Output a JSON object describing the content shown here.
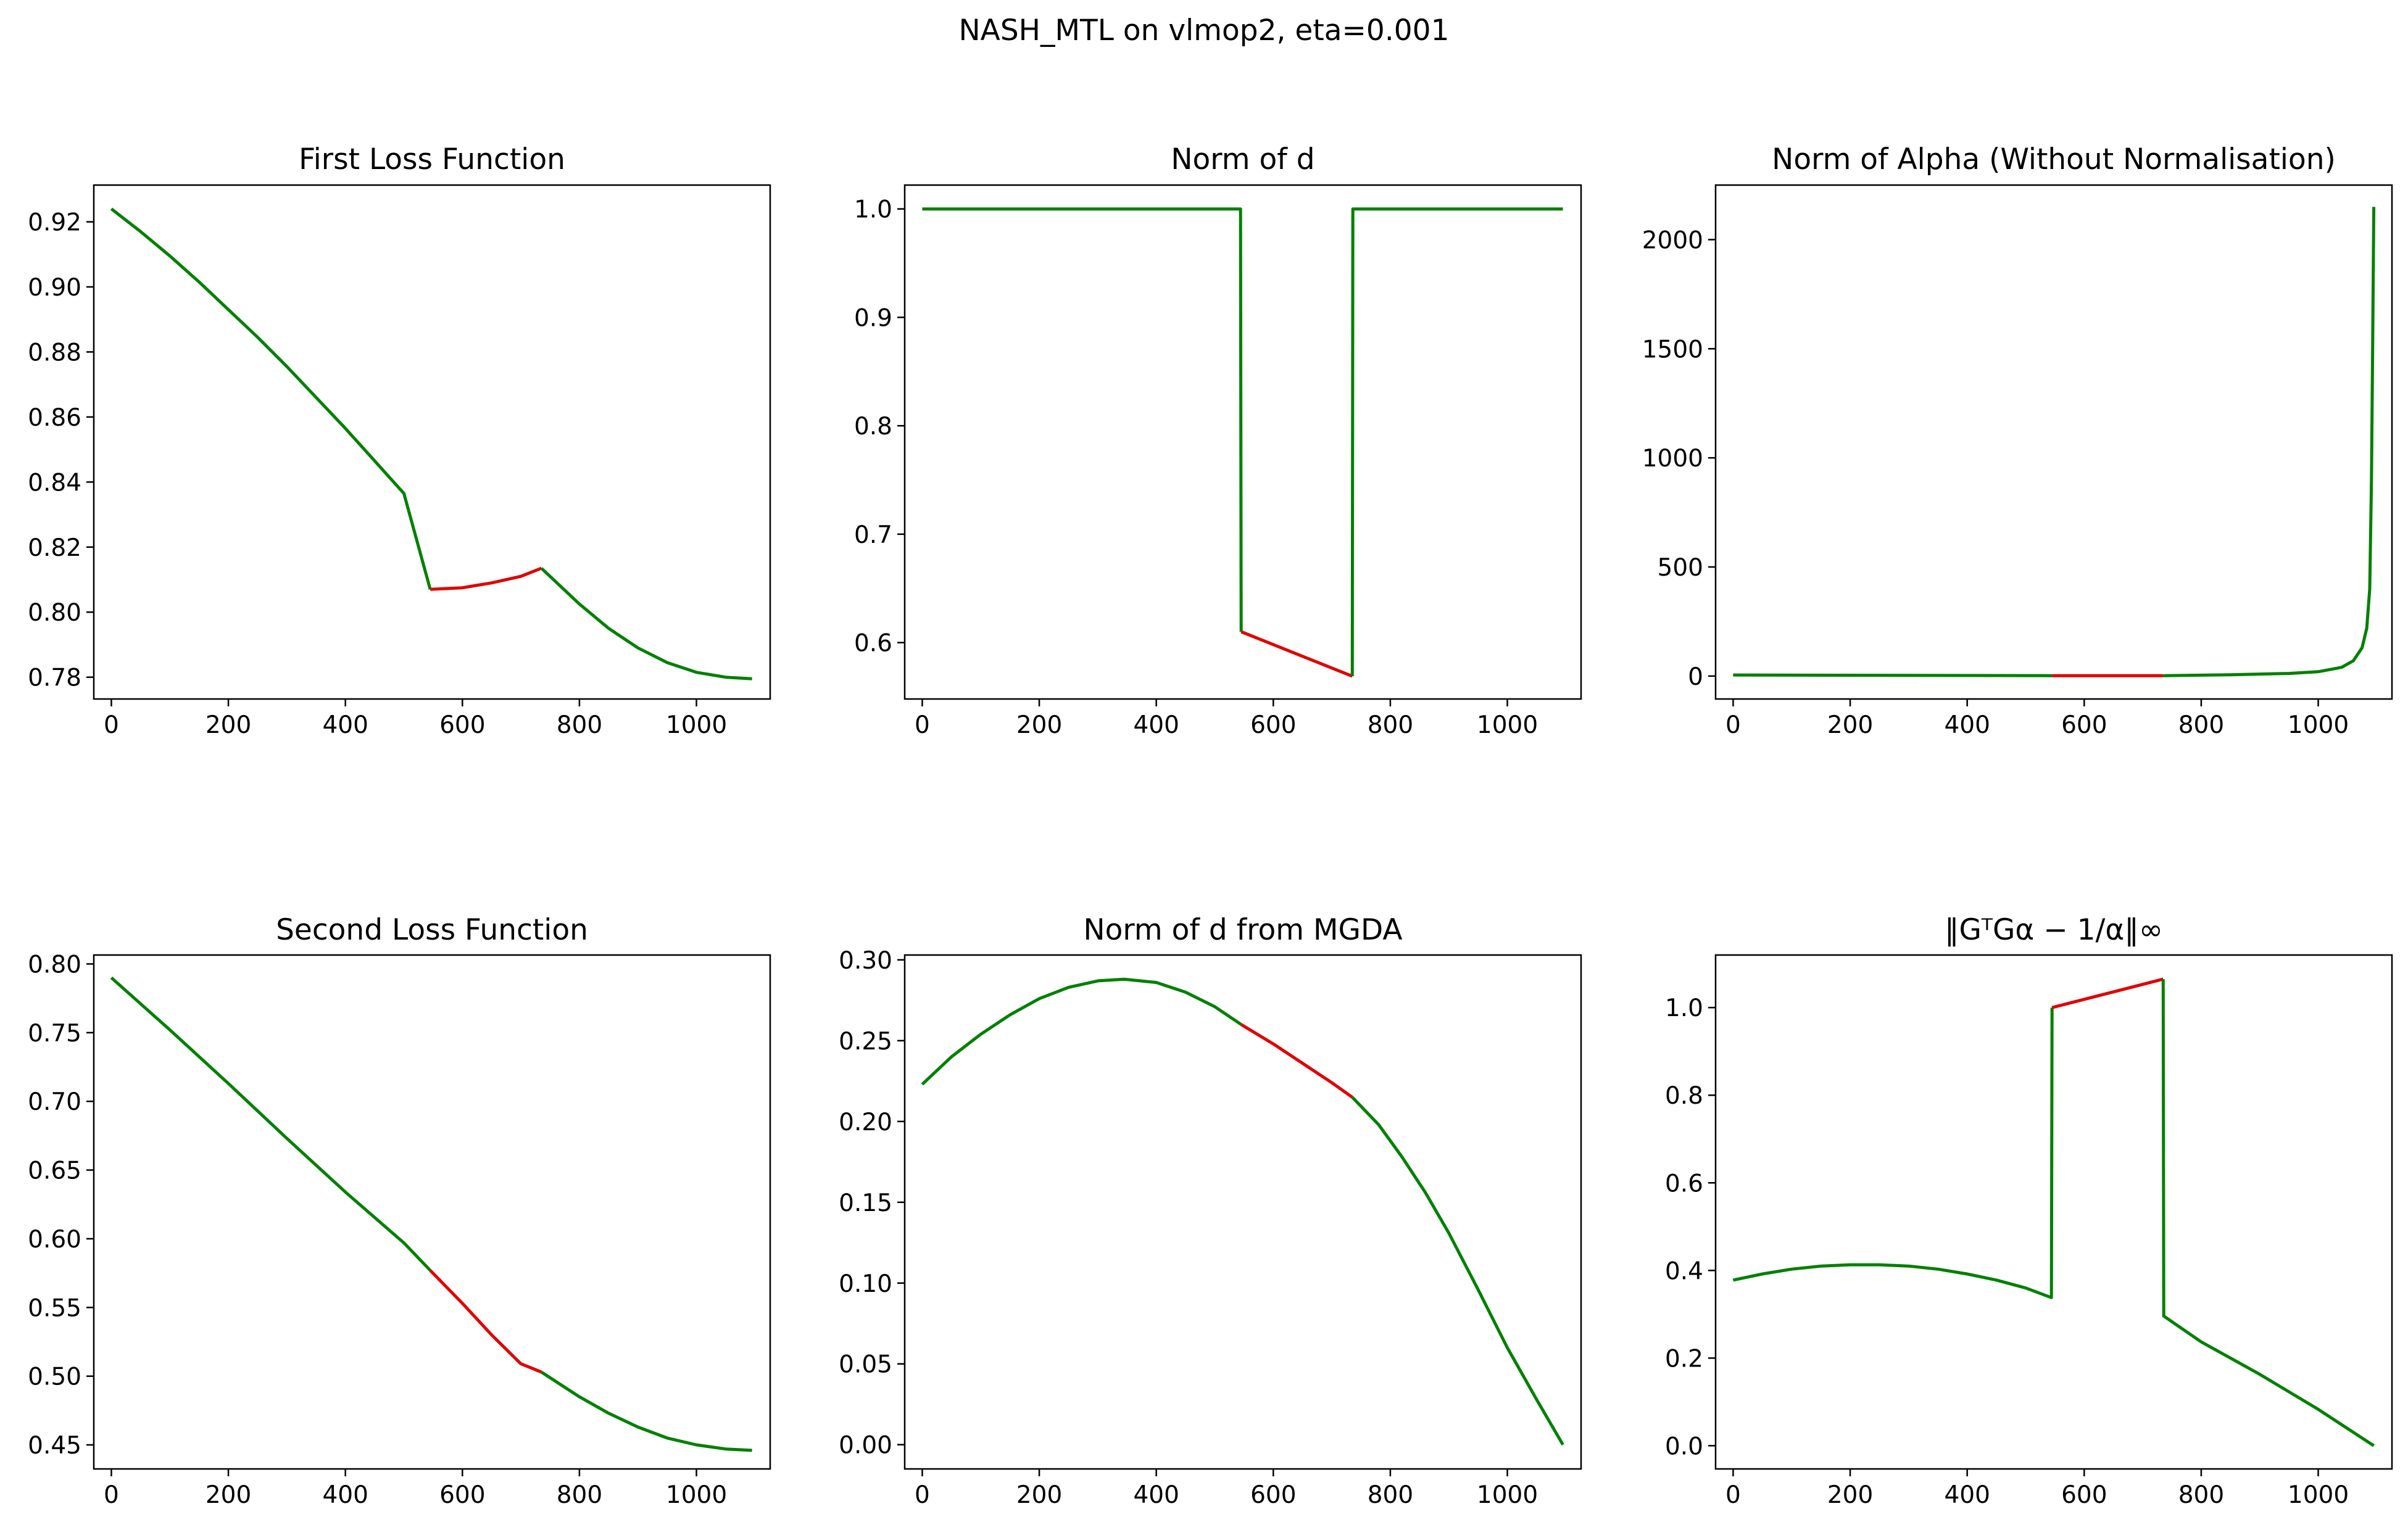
{
  "figure_title": "NASH_MTL on vlmop2, eta=0.001",
  "colors": {
    "normal": "#008000",
    "highlight": "#e00000"
  },
  "chart_data": [
    {
      "type": "line",
      "title": "First Loss Function",
      "xlim": [
        -30,
        1126
      ],
      "ylim": [
        0.7733,
        0.9313
      ],
      "xticks": [
        0,
        200,
        400,
        600,
        800,
        1000
      ],
      "yticks": [
        0.78,
        0.8,
        0.82,
        0.84,
        0.86,
        0.88,
        0.9,
        0.92
      ],
      "ytick_decimals": 2,
      "series": [
        {
          "color": "normal",
          "x": [
            0,
            50,
            100,
            150,
            200,
            250,
            300,
            350,
            400,
            450,
            500,
            545
          ],
          "y": [
            0.924,
            0.917,
            0.9095,
            0.9015,
            0.893,
            0.8845,
            0.8755,
            0.866,
            0.8565,
            0.8465,
            0.8365,
            0.807
          ]
        },
        {
          "color": "highlight",
          "x": [
            545,
            600,
            650,
            700,
            735
          ],
          "y": [
            0.807,
            0.8075,
            0.809,
            0.811,
            0.8135
          ]
        },
        {
          "color": "normal",
          "x": [
            735,
            800,
            850,
            900,
            950,
            1000,
            1050,
            1095
          ],
          "y": [
            0.8135,
            0.8025,
            0.795,
            0.789,
            0.7845,
            0.7815,
            0.78,
            0.7795
          ]
        }
      ]
    },
    {
      "type": "line",
      "title": "Norm of d",
      "xlim": [
        -30,
        1126
      ],
      "ylim": [
        0.548,
        1.022
      ],
      "xticks": [
        0,
        200,
        400,
        600,
        800,
        1000
      ],
      "yticks": [
        0.6,
        0.7,
        0.8,
        0.9,
        1.0
      ],
      "ytick_decimals": 1,
      "series": [
        {
          "color": "normal",
          "x": [
            0,
            544,
            545
          ],
          "y": [
            1.0,
            1.0,
            0.61
          ]
        },
        {
          "color": "highlight",
          "x": [
            545,
            735
          ],
          "y": [
            0.61,
            0.569
          ]
        },
        {
          "color": "normal",
          "x": [
            735,
            736,
            1095
          ],
          "y": [
            0.569,
            1.0,
            1.0
          ]
        }
      ]
    },
    {
      "type": "line",
      "title": "Norm of Alpha (Without Normalisation)",
      "xlim": [
        -30,
        1126
      ],
      "ylim": [
        -105,
        2250
      ],
      "xticks": [
        0,
        200,
        400,
        600,
        800,
        1000
      ],
      "yticks": [
        0,
        500,
        1000,
        1500,
        2000
      ],
      "ytick_decimals": 0,
      "series": [
        {
          "color": "normal",
          "x": [
            0,
            545
          ],
          "y": [
            5,
            2
          ]
        },
        {
          "color": "highlight",
          "x": [
            545,
            735
          ],
          "y": [
            2,
            2
          ]
        },
        {
          "color": "normal",
          "x": [
            735,
            850,
            950,
            1000,
            1040,
            1060,
            1075,
            1083,
            1088,
            1091,
            1093,
            1095
          ],
          "y": [
            2,
            6,
            12,
            20,
            40,
            70,
            130,
            220,
            400,
            900,
            1500,
            2150
          ]
        }
      ]
    },
    {
      "type": "line",
      "title": "Second Loss Function",
      "xlim": [
        -30,
        1126
      ],
      "ylim": [
        0.4325,
        0.8065
      ],
      "xticks": [
        0,
        200,
        400,
        600,
        800,
        1000
      ],
      "yticks": [
        0.45,
        0.5,
        0.55,
        0.6,
        0.65,
        0.7,
        0.75,
        0.8
      ],
      "ytick_decimals": 2,
      "series": [
        {
          "color": "normal",
          "x": [
            0,
            100,
            200,
            300,
            400,
            500,
            545
          ],
          "y": [
            0.79,
            0.752,
            0.713,
            0.673,
            0.634,
            0.597,
            0.577
          ]
        },
        {
          "color": "highlight",
          "x": [
            545,
            600,
            650,
            700,
            735
          ],
          "y": [
            0.577,
            0.553,
            0.53,
            0.509,
            0.503
          ]
        },
        {
          "color": "normal",
          "x": [
            735,
            800,
            850,
            900,
            950,
            1000,
            1050,
            1095
          ],
          "y": [
            0.503,
            0.485,
            0.473,
            0.463,
            0.455,
            0.45,
            0.447,
            0.446
          ]
        }
      ]
    },
    {
      "type": "line",
      "title": "Norm of d from MGDA",
      "xlim": [
        -30,
        1126
      ],
      "ylim": [
        -0.015,
        0.303
      ],
      "xticks": [
        0,
        200,
        400,
        600,
        800,
        1000
      ],
      "yticks": [
        0.0,
        0.05,
        0.1,
        0.15,
        0.2,
        0.25,
        0.3
      ],
      "ytick_decimals": 2,
      "series": [
        {
          "color": "normal",
          "x": [
            0,
            50,
            100,
            150,
            200,
            250,
            300,
            345,
            400,
            450,
            500,
            545
          ],
          "y": [
            0.223,
            0.24,
            0.254,
            0.266,
            0.276,
            0.283,
            0.287,
            0.288,
            0.286,
            0.28,
            0.271,
            0.26
          ]
        },
        {
          "color": "highlight",
          "x": [
            545,
            600,
            650,
            700,
            735
          ],
          "y": [
            0.26,
            0.248,
            0.236,
            0.224,
            0.215
          ]
        },
        {
          "color": "normal",
          "x": [
            735,
            780,
            820,
            860,
            900,
            950,
            1000,
            1050,
            1095
          ],
          "y": [
            0.215,
            0.198,
            0.178,
            0.156,
            0.131,
            0.096,
            0.06,
            0.028,
            0.0
          ]
        }
      ]
    },
    {
      "type": "line",
      "title": "‖GᵀGα − 1/α‖∞",
      "xlim": [
        -30,
        1126
      ],
      "ylim": [
        -0.053,
        1.12
      ],
      "xticks": [
        0,
        200,
        400,
        600,
        800,
        1000
      ],
      "yticks": [
        0.0,
        0.2,
        0.4,
        0.6,
        0.8,
        1.0
      ],
      "ytick_decimals": 1,
      "series": [
        {
          "color": "normal",
          "x": [
            0,
            50,
            100,
            150,
            200,
            250,
            300,
            350,
            400,
            450,
            500,
            544,
            545
          ],
          "y": [
            0.378,
            0.392,
            0.403,
            0.41,
            0.413,
            0.413,
            0.41,
            0.403,
            0.392,
            0.378,
            0.36,
            0.338,
            1.0
          ]
        },
        {
          "color": "highlight",
          "x": [
            545,
            735
          ],
          "y": [
            1.0,
            1.065
          ]
        },
        {
          "color": "normal",
          "x": [
            735,
            736,
            800,
            900,
            1000,
            1095
          ],
          "y": [
            1.065,
            0.296,
            0.237,
            0.163,
            0.083,
            0.0
          ]
        }
      ]
    }
  ]
}
